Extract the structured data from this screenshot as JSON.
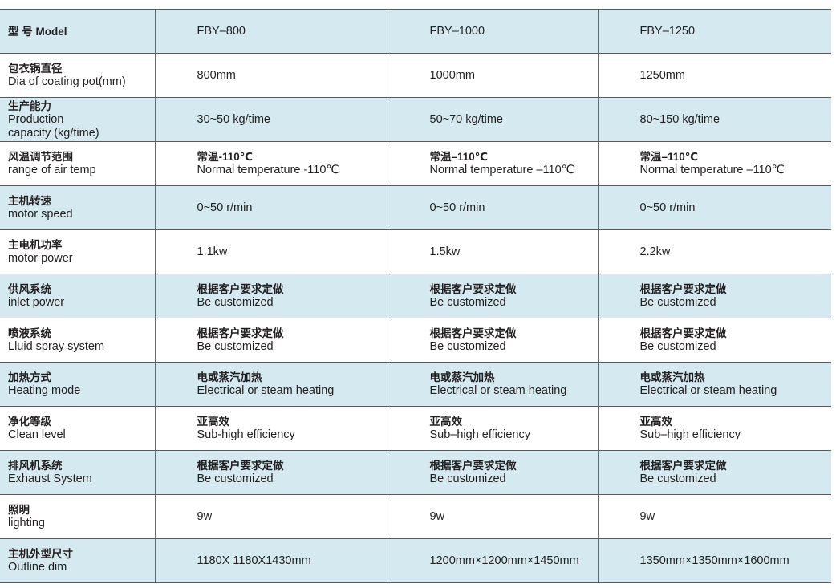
{
  "rows": [
    {
      "label": [
        "型  号 Model"
      ],
      "values": [
        [
          "FBY–800"
        ],
        [
          "FBY–1000"
        ],
        [
          "FBY–1250"
        ]
      ]
    },
    {
      "label": [
        "包衣锅直径",
        "Dia of coating pot(mm)"
      ],
      "values": [
        [
          "800mm"
        ],
        [
          "1000mm"
        ],
        [
          "1250mm"
        ]
      ]
    },
    {
      "label": [
        "生产能力",
        "Production",
        "capacity (kg/time)"
      ],
      "values": [
        [
          "30~50 kg/time"
        ],
        [
          "50~70 kg/time"
        ],
        [
          "80~150 kg/time"
        ]
      ]
    },
    {
      "label": [
        "风温调节范围",
        "range of air temp"
      ],
      "values": [
        [
          "常温-110℃",
          " Normal temperature -110℃"
        ],
        [
          "常温–110℃",
          " Normal temperature –110℃"
        ],
        [
          "常温–110℃",
          "Normal temperature –110℃"
        ]
      ]
    },
    {
      "label": [
        "主机转速",
        "motor speed"
      ],
      "values": [
        [
          "0~50 r/min"
        ],
        [
          "0~50 r/min"
        ],
        [
          "0~50 r/min"
        ]
      ]
    },
    {
      "label": [
        "主电机功率",
        "motor power"
      ],
      "values": [
        [
          "1.1kw"
        ],
        [
          "1.5kw"
        ],
        [
          "2.2kw"
        ]
      ]
    },
    {
      "label": [
        "供风系统",
        "inlet power"
      ],
      "values": [
        [
          "根据客户要求定做",
          "Be customized"
        ],
        [
          "根据客户要求定做",
          "Be customized"
        ],
        [
          "根据客户要求定做",
          "Be customized"
        ]
      ]
    },
    {
      "label": [
        "喷液系统",
        "Lluid spray system"
      ],
      "values": [
        [
          "根据客户要求定做",
          "Be customized"
        ],
        [
          "根据客户要求定做",
          "Be customized"
        ],
        [
          "根据客户要求定做",
          "Be customized"
        ]
      ]
    },
    {
      "label": [
        "加热方式",
        "Heating mode"
      ],
      "values": [
        [
          "电或蒸汽加热",
          "Electrical or steam heating"
        ],
        [
          "电或蒸汽加热",
          "Electrical or steam heating"
        ],
        [
          "电或蒸汽加热",
          "Electrical or steam heating"
        ]
      ]
    },
    {
      "label": [
        "净化等级",
        "Clean level"
      ],
      "values": [
        [
          "亚高效",
          "Sub-high efficiency"
        ],
        [
          "亚高效",
          "Sub–high efficiency"
        ],
        [
          "亚高效",
          "Sub–high efficiency"
        ]
      ]
    },
    {
      "label": [
        "排风机系统",
        "Exhaust System"
      ],
      "values": [
        [
          "根据客户要求定做",
          "Be customized"
        ],
        [
          "根据客户要求定做",
          "Be customized"
        ],
        [
          "根据客户要求定做",
          "Be customized"
        ]
      ]
    },
    {
      "label": [
        "照明",
        "lighting"
      ],
      "values": [
        [
          "9w"
        ],
        [
          "9w"
        ],
        [
          "9w"
        ]
      ]
    },
    {
      "label": [
        "主机外型尺寸",
        "Outline dim"
      ],
      "values": [
        [
          "1180X 1180X1430mm"
        ],
        [
          "1200mm×1200mm×1450mm"
        ],
        [
          "1350mm×1350mm×1600mm"
        ]
      ]
    }
  ],
  "colors": {
    "row_blue": "#d5e9f0",
    "row_white": "#ffffff",
    "border": "#5a5a5a"
  }
}
